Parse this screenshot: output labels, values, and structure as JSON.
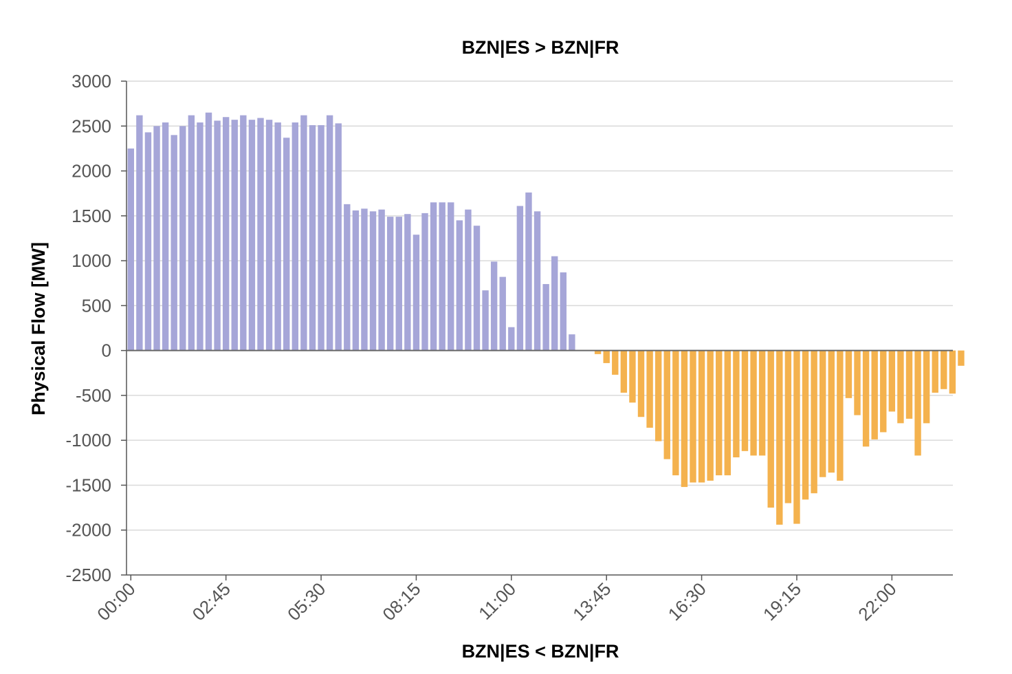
{
  "chart_data": {
    "type": "bar",
    "title": "BZN|ES > BZN|FR",
    "xlabel": "BZN|ES < BZN|FR",
    "ylabel": "Physical Flow [MW]",
    "ylim": [
      -2500,
      3000
    ],
    "yticks": [
      "3000",
      "2500",
      "2000",
      "1500",
      "1000",
      "500",
      "0",
      "-500",
      "-1000",
      "-1500",
      "-2000",
      "-2500"
    ],
    "ytick_values": [
      3000,
      2500,
      2000,
      1500,
      1000,
      500,
      0,
      -500,
      -1000,
      -1500,
      -2000,
      -2500
    ],
    "xticks": [
      "00:00",
      "02:45",
      "05:30",
      "08:15",
      "11:00",
      "13:45",
      "16:30",
      "19:15",
      "22:00"
    ],
    "xtick_indices": [
      0,
      11,
      22,
      33,
      44,
      55,
      66,
      77,
      88
    ],
    "interval_minutes": 15,
    "grid": true,
    "colors": {
      "positive": "#a6a6d8",
      "negative": "#f4b24e",
      "grid": "#d9d9d9",
      "axis": "#555555"
    },
    "values": [
      2250,
      2620,
      2430,
      2500,
      2540,
      2400,
      2500,
      2620,
      2540,
      2650,
      2560,
      2600,
      2570,
      2620,
      2570,
      2590,
      2570,
      2540,
      2370,
      2540,
      2620,
      2510,
      2510,
      2620,
      2530,
      1630,
      1560,
      1580,
      1550,
      1570,
      1490,
      1490,
      1520,
      1290,
      1530,
      1650,
      1650,
      1650,
      1450,
      1570,
      1390,
      670,
      990,
      820,
      260,
      1610,
      1760,
      1550,
      740,
      1050,
      870,
      180,
      0,
      0,
      -40,
      -140,
      -270,
      -470,
      -580,
      -740,
      -860,
      -1010,
      -1210,
      -1390,
      -1520,
      -1470,
      -1470,
      -1450,
      -1390,
      -1390,
      -1190,
      -1120,
      -1170,
      -1170,
      -1750,
      -1940,
      -1700,
      -1930,
      -1660,
      -1590,
      -1410,
      -1360,
      -1450,
      -530,
      -720,
      -1070,
      -990,
      -910,
      -680,
      -810,
      -760,
      -1170,
      -810,
      -470,
      -430,
      -480,
      -170
    ]
  }
}
